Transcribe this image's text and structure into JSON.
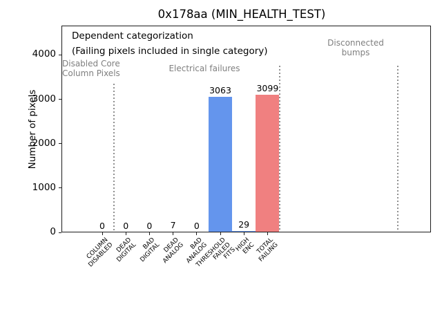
{
  "chart_data": {
    "type": "bar",
    "title": "0x178aa (MIN_HEALTH_TEST)",
    "xlabel": "",
    "ylabel": "Number of pixels",
    "categories": [
      "COLUMN\nDISABLED",
      "DEAD\nDIGITAL",
      "BAD\nDIGITAL",
      "DEAD\nANALOG",
      "BAD\nANALOG",
      "THRESHOLD\nFAILED\nFITS",
      "HIGH\nENC",
      "TOTAL\nFAILING"
    ],
    "values": [
      0,
      0,
      0,
      7,
      0,
      3063,
      29,
      3099
    ],
    "bar_colors": [
      "#6495ED",
      "#6495ED",
      "#6495ED",
      "#6495ED",
      "#6495ED",
      "#6495ED",
      "#6495ED",
      "#F08080"
    ],
    "yticks": [
      0,
      1000,
      2000,
      3000,
      4000
    ],
    "ylim": [
      0,
      4660
    ],
    "grid": false,
    "legend_position": "none",
    "annotations": {
      "note_line1": "Dependent categorization",
      "note_line2": "(Failing pixels included in single category)",
      "region_labels": [
        {
          "text": "Disabled Core\nColumn Pixels",
          "color": "#7f7f7f"
        },
        {
          "text": "Electrical failures",
          "color": "#7f7f7f"
        },
        {
          "text": "Disconnected\nbumps",
          "color": "#7f7f7f"
        }
      ],
      "separators_at_category_boundaries": [
        0.5,
        7.5,
        12.5
      ]
    },
    "colors": {
      "default_bar": "#6495ED",
      "total_bar": "#F08080",
      "muted_text": "#7f7f7f",
      "separator_line": "#8f8f8f"
    }
  }
}
